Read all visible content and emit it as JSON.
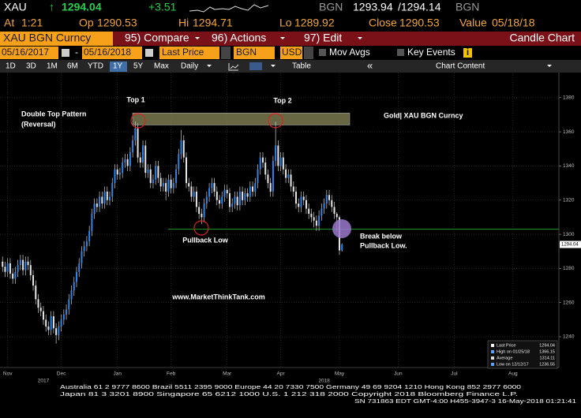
{
  "terminal": {
    "ticker": "XAU",
    "arrow": "↑",
    "last": "1294.04",
    "change": "+3.51",
    "bid_src": "BGN",
    "bid": "1293.94",
    "ask": "/1294.14",
    "ask_src": "BGN",
    "at_label": "At",
    "at": "1:21",
    "op_label": "Op",
    "op": "1290.53",
    "hi_label": "Hi",
    "hi": "1294.71",
    "lo_label": "Lo",
    "lo": "1289.92",
    "close_label": "Close",
    "close": "1290.53",
    "value_label": "Value",
    "value": "05/18/18",
    "security": "XAU BGN Curncy",
    "menu": [
      "95) Compare",
      "96) Actions",
      "97) Edit"
    ],
    "view": "Candle Chart",
    "start_date": "05/16/2017",
    "dash": "-",
    "end_date": "05/16/2018",
    "field": "Last Price",
    "source": "BGN",
    "currency": "USD",
    "mov_avgs": "Mov Avgs",
    "key_events": "Key Events",
    "info": "i",
    "ranges": [
      "1D",
      "3D",
      "1M",
      "6M",
      "YTD",
      "1Y",
      "5Y",
      "Max"
    ],
    "active_range": "1Y",
    "period": "Daily",
    "table": "Table",
    "collapse": "«",
    "chart_content": "Chart Content"
  },
  "chart_data": {
    "type": "candlestick",
    "open": [
      1284,
      1281,
      1278,
      1283,
      1277,
      1274,
      1278,
      1282,
      1285,
      1279,
      1284,
      1282,
      1276,
      1270,
      1262,
      1257,
      1255,
      1250,
      1246,
      1244,
      1252,
      1245,
      1241,
      1246,
      1250,
      1253,
      1256,
      1262,
      1267,
      1272,
      1278,
      1283,
      1290,
      1293,
      1296,
      1302,
      1312,
      1318,
      1316,
      1322,
      1318,
      1325,
      1320,
      1322,
      1330,
      1338,
      1335,
      1336,
      1342,
      1344,
      1340,
      1348,
      1355,
      1362,
      1345,
      1342,
      1352,
      1336,
      1338,
      1330,
      1332,
      1340,
      1333,
      1328,
      1330,
      1325,
      1332,
      1327,
      1330,
      1338,
      1347,
      1355,
      1345,
      1330,
      1328,
      1322,
      1325,
      1316,
      1312,
      1310,
      1318,
      1322,
      1327,
      1330,
      1325,
      1320,
      1318,
      1322,
      1326,
      1324,
      1316,
      1318,
      1322,
      1317,
      1325,
      1320,
      1324,
      1322,
      1328,
      1325,
      1330,
      1338,
      1345,
      1342,
      1335,
      1330,
      1325,
      1343,
      1352,
      1340,
      1345,
      1338,
      1333,
      1335,
      1328,
      1325,
      1318,
      1316,
      1322,
      1320,
      1315,
      1312,
      1310,
      1308,
      1305,
      1311,
      1315,
      1318,
      1323,
      1320,
      1316,
      1312,
      1310,
      1290.53
    ],
    "high": [
      1287,
      1284,
      1286,
      1286,
      1280,
      1281,
      1285,
      1288,
      1288,
      1287,
      1287,
      1285,
      1279,
      1273,
      1265,
      1260,
      1258,
      1253,
      1249,
      1255,
      1255,
      1248,
      1249,
      1253,
      1256,
      1259,
      1265,
      1270,
      1275,
      1281,
      1286,
      1293,
      1296,
      1299,
      1305,
      1315,
      1321,
      1321,
      1325,
      1325,
      1328,
      1328,
      1325,
      1333,
      1341,
      1341,
      1339,
      1345,
      1347,
      1347,
      1351,
      1358,
      1366,
      1365,
      1348,
      1355,
      1355,
      1341,
      1341,
      1335,
      1343,
      1343,
      1336,
      1333,
      1333,
      1335,
      1335,
      1333,
      1341,
      1350,
      1361,
      1358,
      1348,
      1333,
      1331,
      1328,
      1328,
      1319,
      1315,
      1321,
      1325,
      1330,
      1333,
      1333,
      1328,
      1323,
      1325,
      1329,
      1329,
      1327,
      1321,
      1325,
      1325,
      1328,
      1328,
      1327,
      1327,
      1331,
      1331,
      1333,
      1341,
      1348,
      1348,
      1345,
      1338,
      1333,
      1346,
      1366,
      1355,
      1348,
      1348,
      1341,
      1338,
      1338,
      1331,
      1328,
      1321,
      1325,
      1325,
      1323,
      1318,
      1315,
      1313,
      1311,
      1314,
      1318,
      1321,
      1326,
      1326,
      1323,
      1319,
      1313,
      1311,
      1294.71
    ],
    "low": [
      1278,
      1275,
      1275,
      1274,
      1271,
      1271,
      1275,
      1279,
      1276,
      1276,
      1279,
      1273,
      1267,
      1259,
      1254,
      1252,
      1247,
      1243,
      1241,
      1241,
      1242,
      1236,
      1238,
      1243,
      1247,
      1250,
      1253,
      1259,
      1264,
      1269,
      1275,
      1280,
      1287,
      1290,
      1293,
      1299,
      1309,
      1313,
      1313,
      1315,
      1315,
      1317,
      1317,
      1319,
      1327,
      1332,
      1332,
      1333,
      1339,
      1337,
      1337,
      1345,
      1352,
      1342,
      1339,
      1339,
      1333,
      1333,
      1327,
      1327,
      1329,
      1330,
      1325,
      1325,
      1320,
      1322,
      1324,
      1324,
      1327,
      1335,
      1344,
      1342,
      1327,
      1325,
      1319,
      1319,
      1313,
      1309,
      1306,
      1307,
      1315,
      1319,
      1324,
      1322,
      1317,
      1315,
      1315,
      1319,
      1321,
      1313,
      1313,
      1315,
      1314,
      1314,
      1317,
      1317,
      1319,
      1319,
      1322,
      1322,
      1327,
      1335,
      1339,
      1332,
      1327,
      1322,
      1322,
      1340,
      1337,
      1337,
      1335,
      1330,
      1330,
      1325,
      1322,
      1315,
      1313,
      1313,
      1317,
      1312,
      1309,
      1307,
      1304,
      1302,
      1302,
      1308,
      1312,
      1315,
      1317,
      1313,
      1309,
      1302,
      1288,
      1289.92
    ],
    "close": [
      1281,
      1278,
      1283,
      1277,
      1274,
      1278,
      1282,
      1285,
      1279,
      1284,
      1282,
      1276,
      1270,
      1262,
      1257,
      1255,
      1250,
      1246,
      1244,
      1252,
      1245,
      1241,
      1246,
      1250,
      1253,
      1256,
      1262,
      1267,
      1272,
      1278,
      1283,
      1290,
      1293,
      1296,
      1302,
      1312,
      1318,
      1316,
      1322,
      1318,
      1325,
      1320,
      1322,
      1330,
      1338,
      1335,
      1336,
      1342,
      1344,
      1340,
      1348,
      1355,
      1362,
      1345,
      1342,
      1352,
      1336,
      1338,
      1330,
      1332,
      1340,
      1333,
      1328,
      1330,
      1325,
      1332,
      1327,
      1330,
      1338,
      1347,
      1355,
      1345,
      1330,
      1328,
      1322,
      1325,
      1316,
      1312,
      1310,
      1318,
      1322,
      1327,
      1330,
      1325,
      1320,
      1318,
      1322,
      1326,
      1324,
      1316,
      1318,
      1322,
      1317,
      1325,
      1320,
      1324,
      1322,
      1328,
      1325,
      1330,
      1338,
      1345,
      1342,
      1335,
      1330,
      1325,
      1343,
      1352,
      1340,
      1345,
      1338,
      1333,
      1335,
      1328,
      1325,
      1318,
      1316,
      1322,
      1320,
      1315,
      1312,
      1310,
      1308,
      1305,
      1311,
      1315,
      1318,
      1323,
      1320,
      1316,
      1312,
      1310,
      1290.53,
      1294.04
    ],
    "up_color": "#2f86e8",
    "down_color": "#e6e6e6",
    "ylim": [
      1222,
      1391
    ],
    "yticks": [
      1240,
      1260,
      1280,
      1300,
      1320,
      1340,
      1360,
      1380
    ],
    "xlim": [
      -1,
      218
    ],
    "xticks": [
      {
        "value": 2,
        "label": "Nov"
      },
      {
        "value": 23,
        "label": "Dec"
      },
      {
        "value": 45,
        "label": "Jan"
      },
      {
        "value": 66,
        "label": "Feb"
      },
      {
        "value": 88,
        "label": "Mar"
      },
      {
        "value": 109,
        "label": "Apr"
      },
      {
        "value": 132,
        "label": "May"
      },
      {
        "value": 155,
        "label": "Jun"
      },
      {
        "value": 177,
        "label": "Jul"
      },
      {
        "value": 200,
        "label": "Aug"
      }
    ],
    "year_labels": [
      {
        "value": 16,
        "label": "2017"
      },
      {
        "value": 126,
        "label": "2018"
      }
    ],
    "grid": true,
    "last_price": 1294.04,
    "support_level": 1303,
    "support_color": "#1f9b2e",
    "resistance_zone": [
      1364,
      1371
    ],
    "resistance_color": "#8a8a5a",
    "annotations": {
      "top1": "Top 1",
      "top2": "Top 2",
      "pattern": [
        "Double Top Pattern",
        "(Reversal)"
      ],
      "name": "Gold| XAU BGN Curncy",
      "pullback": "Pullback Low",
      "break": [
        "Break below",
        "Pullback Low."
      ],
      "site": "www.MarketThinkTank.com"
    },
    "stats": [
      {
        "label": "Last Price",
        "value": "1294.04"
      },
      {
        "label": "High on 01/25/18",
        "value": "1366.15"
      },
      {
        "label": "Average",
        "value": "1314.11"
      },
      {
        "label": "Low on 12/12/17",
        "value": "1236.55"
      }
    ]
  },
  "footer": [
    "Australia 61 2 9777 8600 Brazil 5511 2395 9000 Europe 44 20 7330 7500 Germany 49 69 9204 1210 Hong Kong 852 2977 6000",
    "Japan 81 3 3201 8900 Singapore 65 6212 1000 U.S. 1 212 318 2000 Copyright 2018 Bloomberg Finance L.P.",
    "SN 731863 EDT GMT-4:00 H455-3947-3 16-May-2018 01:21:41"
  ]
}
